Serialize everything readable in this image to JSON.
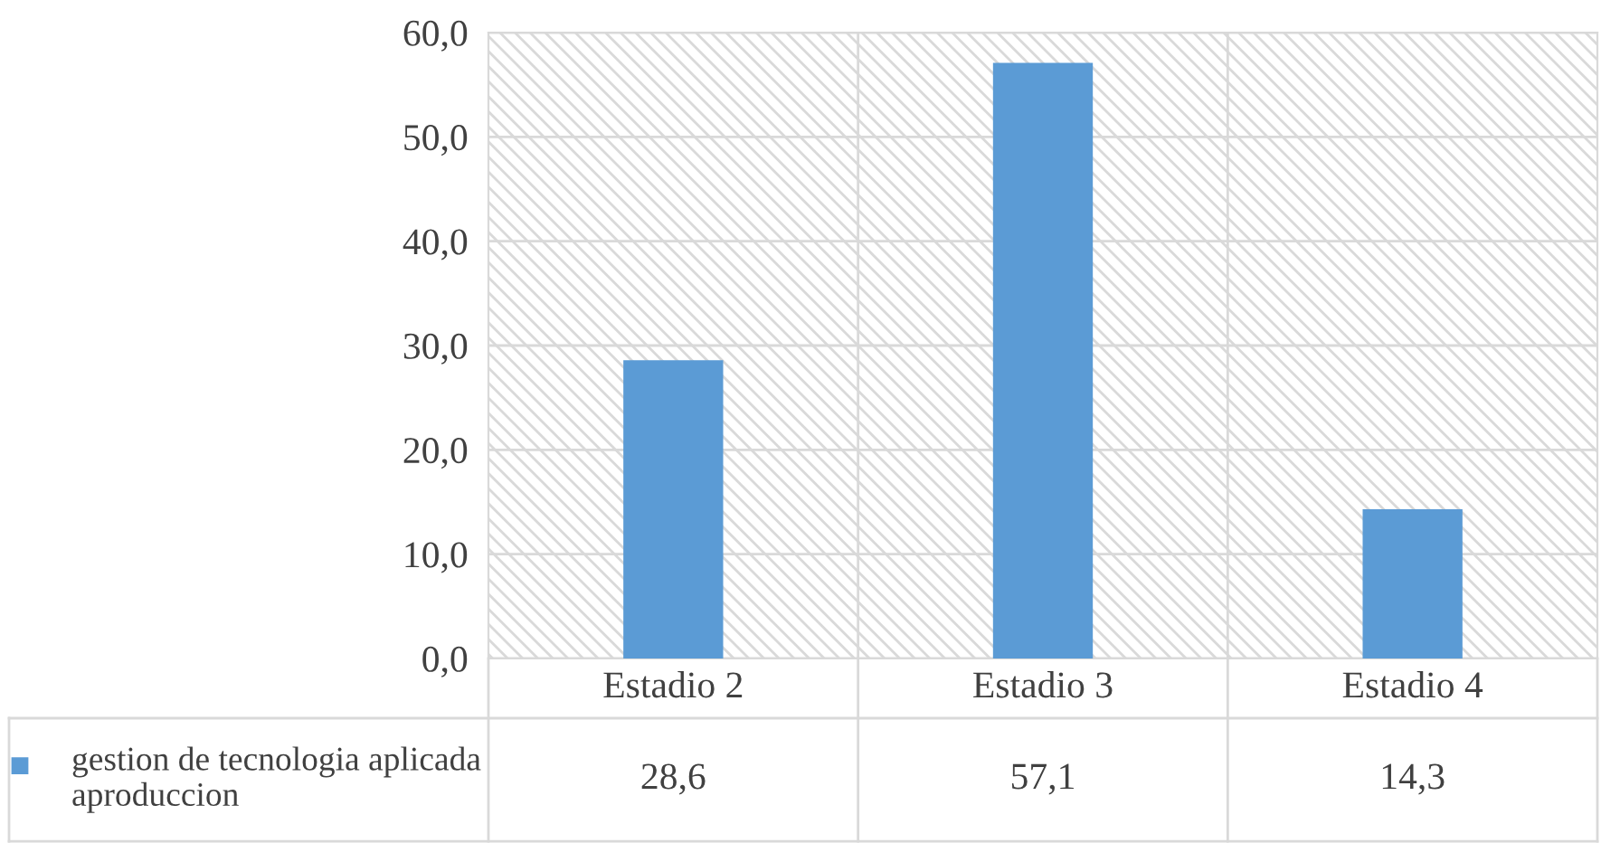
{
  "chart_data": {
    "type": "bar",
    "categories": [
      "Estadio 2",
      "Estadio 3",
      "Estadio 4"
    ],
    "series": [
      {
        "name": "gestion de tecnologia aplicada aproduccion",
        "color": "#5b9bd5",
        "values": [
          28.6,
          57.1,
          14.3
        ],
        "value_labels": [
          "28,6",
          "57,1",
          "14,3"
        ]
      }
    ],
    "ylim": [
      0,
      60
    ],
    "yticks": [
      {
        "value": 0,
        "label": "0,0"
      },
      {
        "value": 10,
        "label": "10,0"
      },
      {
        "value": 20,
        "label": "20,0"
      },
      {
        "value": 30,
        "label": "30,0"
      },
      {
        "value": 40,
        "label": "40,0"
      },
      {
        "value": 50,
        "label": "50,0"
      },
      {
        "value": 60,
        "label": "60,0"
      }
    ],
    "grid": "y",
    "legend": "bottom"
  }
}
